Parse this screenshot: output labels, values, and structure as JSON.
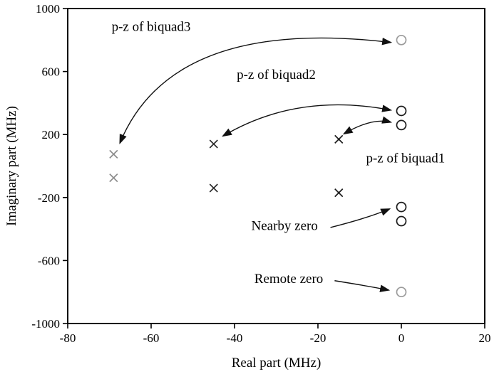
{
  "chart_data": {
    "type": "scatter",
    "title": "",
    "xlabel": "Real part (MHz)",
    "ylabel": "Imaginary part (MHz)",
    "xlim": [
      -80,
      20
    ],
    "ylim": [
      -1000,
      1000
    ],
    "x_ticks": [
      -80,
      -60,
      -40,
      -20,
      0,
      20
    ],
    "y_ticks": [
      -1000,
      -600,
      -200,
      200,
      600,
      1000
    ],
    "grid": false,
    "legend": "none",
    "series": [
      {
        "name": "biquad1-poles",
        "marker": "x",
        "color": "#1a1a1a",
        "points": [
          [
            -15,
            170
          ],
          [
            -15,
            -170
          ]
        ]
      },
      {
        "name": "biquad2-poles",
        "marker": "x",
        "color": "#2e2e2e",
        "points": [
          [
            -45,
            140
          ],
          [
            -45,
            -140
          ]
        ]
      },
      {
        "name": "biquad3-poles",
        "marker": "x",
        "color": "#8c8c8c",
        "points": [
          [
            -69,
            75
          ],
          [
            -69,
            -75
          ]
        ]
      },
      {
        "name": "biquad1-zeros",
        "marker": "o",
        "color": "#1a1a1a",
        "points": [
          [
            0,
            260
          ],
          [
            0,
            -260
          ]
        ]
      },
      {
        "name": "biquad2-zeros",
        "marker": "o",
        "color": "#1a1a1a",
        "points": [
          [
            0,
            350
          ],
          [
            0,
            -350
          ]
        ]
      },
      {
        "name": "biquad3-zeros",
        "marker": "o",
        "color": "#9a9a9a",
        "points": [
          [
            0,
            800
          ],
          [
            0,
            -800
          ]
        ]
      }
    ],
    "annotations": [
      {
        "name": "biquad3-label",
        "text": "p-z of biquad3",
        "x": -60,
        "y": 885
      },
      {
        "name": "biquad2-label",
        "text": "p-z of biquad2",
        "x": -30,
        "y": 580
      },
      {
        "name": "biquad1-label",
        "text": "p-z of biquad1",
        "x": 1,
        "y": 50
      },
      {
        "name": "nearby-zero-label",
        "text": "Nearby zero",
        "x": -28,
        "y": -380
      },
      {
        "name": "remote-zero-label",
        "text": "Remote zero",
        "x": -27,
        "y": -715
      }
    ],
    "arrows": [
      {
        "name": "biquad3-arrow",
        "from": [
          -67.5,
          145
        ],
        "ctrl": [
          -55,
          950
        ],
        "to": [
          -2.5,
          785
        ],
        "heads": "both"
      },
      {
        "name": "biquad2-arrow",
        "from": [
          -42.8,
          190
        ],
        "ctrl": [
          -25,
          470
        ],
        "to": [
          -2.5,
          355
        ],
        "heads": "both"
      },
      {
        "name": "biquad1-arrow",
        "from": [
          -13.8,
          204
        ],
        "ctrl": [
          -7,
          310
        ],
        "to": [
          -2.5,
          278
        ],
        "heads": "both"
      },
      {
        "name": "nearby-zero-arrow",
        "from": [
          -17,
          -390
        ],
        "ctrl": [
          -8,
          -330
        ],
        "to": [
          -2.8,
          -272
        ],
        "heads": "end"
      },
      {
        "name": "remote-zero-arrow",
        "from": [
          -16,
          -728
        ],
        "ctrl": [
          -8,
          -762
        ],
        "to": [
          -3,
          -788
        ],
        "heads": "end"
      }
    ]
  },
  "colors": {
    "background": "#ffffff",
    "axis": "#000000",
    "arrow": "#111111"
  }
}
